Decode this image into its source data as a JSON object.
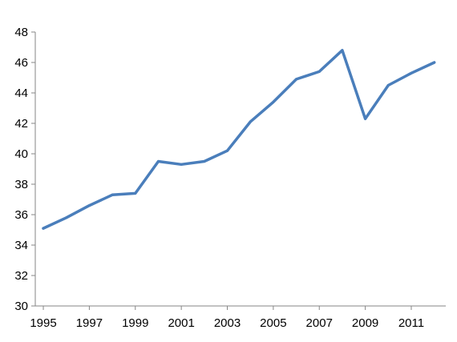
{
  "chart_data": {
    "type": "line",
    "title": "",
    "xlabel": "",
    "ylabel": "",
    "x": [
      1995,
      1996,
      1997,
      1998,
      1999,
      2000,
      2001,
      2002,
      2003,
      2004,
      2005,
      2006,
      2007,
      2008,
      2009,
      2010,
      2011,
      2012
    ],
    "series": [
      {
        "values": [
          35.1,
          35.8,
          36.6,
          37.3,
          37.4,
          39.5,
          39.3,
          39.5,
          40.2,
          42.1,
          43.4,
          44.9,
          45.4,
          46.8,
          42.3,
          44.5,
          45.3,
          46.0
        ],
        "color": "#4a7ebb"
      }
    ],
    "ylim": [
      30,
      48
    ],
    "y_ticks": [
      "30",
      "32",
      "34",
      "36",
      "38",
      "40",
      "42",
      "44",
      "46",
      "48"
    ],
    "x_ticks": [
      "1995",
      "1997",
      "1999",
      "2001",
      "2003",
      "2005",
      "2007",
      "2009",
      "2011"
    ],
    "grid": false,
    "legend": "none",
    "axis_color": "#868686",
    "text_color": "#000000"
  }
}
